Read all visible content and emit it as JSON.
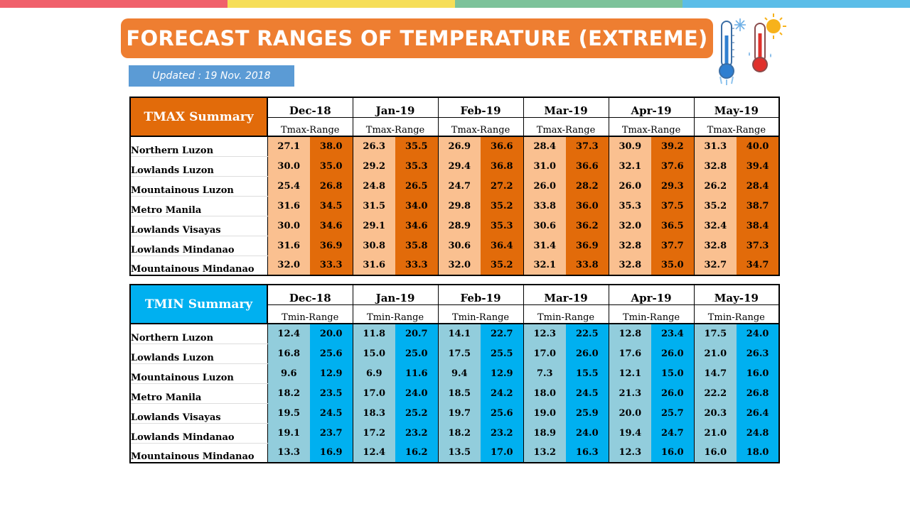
{
  "colors": {
    "topbar": [
      "#f0606b",
      "#f6de58",
      "#7cc29a",
      "#5bbde8"
    ],
    "title_bg": "#ee7e31",
    "updated_bg": "#5b9bd5",
    "tmax_header": "#e26b0a",
    "tmax_low": "#fac090",
    "tmax_high": "#e26b0a",
    "tmin_header": "#00b0f0",
    "tmin_low": "#92cddc",
    "tmin_high": "#00b0f0"
  },
  "icons": [
    "cold-thermometer-icon",
    "hot-thermometer-icon"
  ],
  "title": "FORECAST RANGES OF TEMPERATURE (EXTREME)",
  "updated": "Updated : 19 Nov. 2018",
  "months": [
    "Dec-18",
    "Jan-19",
    "Feb-19",
    "Mar-19",
    "Apr-19",
    "May-19"
  ],
  "tmax": {
    "label": "TMAX Summary",
    "range_label": "Tmax-Range",
    "rows": [
      {
        "region": "Northern Luzon",
        "values": [
          "27.1",
          "38.0",
          "26.3",
          "35.5",
          "26.9",
          "36.6",
          "28.4",
          "37.3",
          "30.9",
          "39.2",
          "31.3",
          "40.0"
        ]
      },
      {
        "region": "Lowlands Luzon",
        "values": [
          "30.0",
          "35.0",
          "29.2",
          "35.3",
          "29.4",
          "36.8",
          "31.0",
          "36.6",
          "32.1",
          "37.6",
          "32.8",
          "39.4"
        ]
      },
      {
        "region": "Mountainous Luzon",
        "values": [
          "25.4",
          "26.8",
          "24.8",
          "26.5",
          "24.7",
          "27.2",
          "26.0",
          "28.2",
          "26.0",
          "29.3",
          "26.2",
          "28.4"
        ]
      },
      {
        "region": "Metro Manila",
        "values": [
          "31.6",
          "34.5",
          "31.5",
          "34.0",
          "29.8",
          "35.2",
          "33.8",
          "36.0",
          "35.3",
          "37.5",
          "35.2",
          "38.7"
        ]
      },
      {
        "region": "Lowlands Visayas",
        "values": [
          "30.0",
          "34.6",
          "29.1",
          "34.6",
          "28.9",
          "35.3",
          "30.6",
          "36.2",
          "32.0",
          "36.5",
          "32.4",
          "38.4"
        ]
      },
      {
        "region": "Lowlands Mindanao",
        "values": [
          "31.6",
          "36.9",
          "30.8",
          "35.8",
          "30.6",
          "36.4",
          "31.4",
          "36.9",
          "32.8",
          "37.7",
          "32.8",
          "37.3"
        ]
      },
      {
        "region": "Mountainous Mindanao",
        "values": [
          "32.0",
          "33.3",
          "31.6",
          "33.3",
          "32.0",
          "35.2",
          "32.1",
          "33.8",
          "32.8",
          "35.0",
          "32.7",
          "34.7"
        ]
      }
    ]
  },
  "tmin": {
    "label": "TMIN Summary",
    "range_label": "Tmin-Range",
    "rows": [
      {
        "region": "Northern Luzon",
        "values": [
          "12.4",
          "20.0",
          "11.8",
          "20.7",
          "14.1",
          "22.7",
          "12.3",
          "22.5",
          "12.8",
          "23.4",
          "17.5",
          "24.0"
        ]
      },
      {
        "region": "Lowlands Luzon",
        "values": [
          "16.8",
          "25.6",
          "15.0",
          "25.0",
          "17.5",
          "25.5",
          "17.0",
          "26.0",
          "17.6",
          "26.0",
          "21.0",
          "26.3"
        ]
      },
      {
        "region": "Mountainous Luzon",
        "values": [
          "9.6",
          "12.9",
          "6.9",
          "11.6",
          "9.4",
          "12.9",
          "7.3",
          "15.5",
          "12.1",
          "15.0",
          "14.7",
          "16.0"
        ]
      },
      {
        "region": "Metro Manila",
        "values": [
          "18.2",
          "23.5",
          "17.0",
          "24.0",
          "18.5",
          "24.2",
          "18.0",
          "24.5",
          "21.3",
          "26.0",
          "22.2",
          "26.8"
        ]
      },
      {
        "region": "Lowlands Visayas",
        "values": [
          "19.5",
          "24.5",
          "18.3",
          "25.2",
          "19.7",
          "25.6",
          "19.0",
          "25.9",
          "20.0",
          "25.7",
          "20.3",
          "26.4"
        ]
      },
      {
        "region": "Lowlands Mindanao",
        "values": [
          "19.1",
          "23.7",
          "17.2",
          "23.2",
          "18.2",
          "23.2",
          "18.9",
          "24.0",
          "19.4",
          "24.7",
          "21.0",
          "24.8"
        ]
      },
      {
        "region": "Mountainous Mindanao",
        "values": [
          "13.3",
          "16.9",
          "12.4",
          "16.2",
          "13.5",
          "17.0",
          "13.2",
          "16.3",
          "12.3",
          "16.0",
          "16.0",
          "18.0"
        ]
      }
    ]
  }
}
